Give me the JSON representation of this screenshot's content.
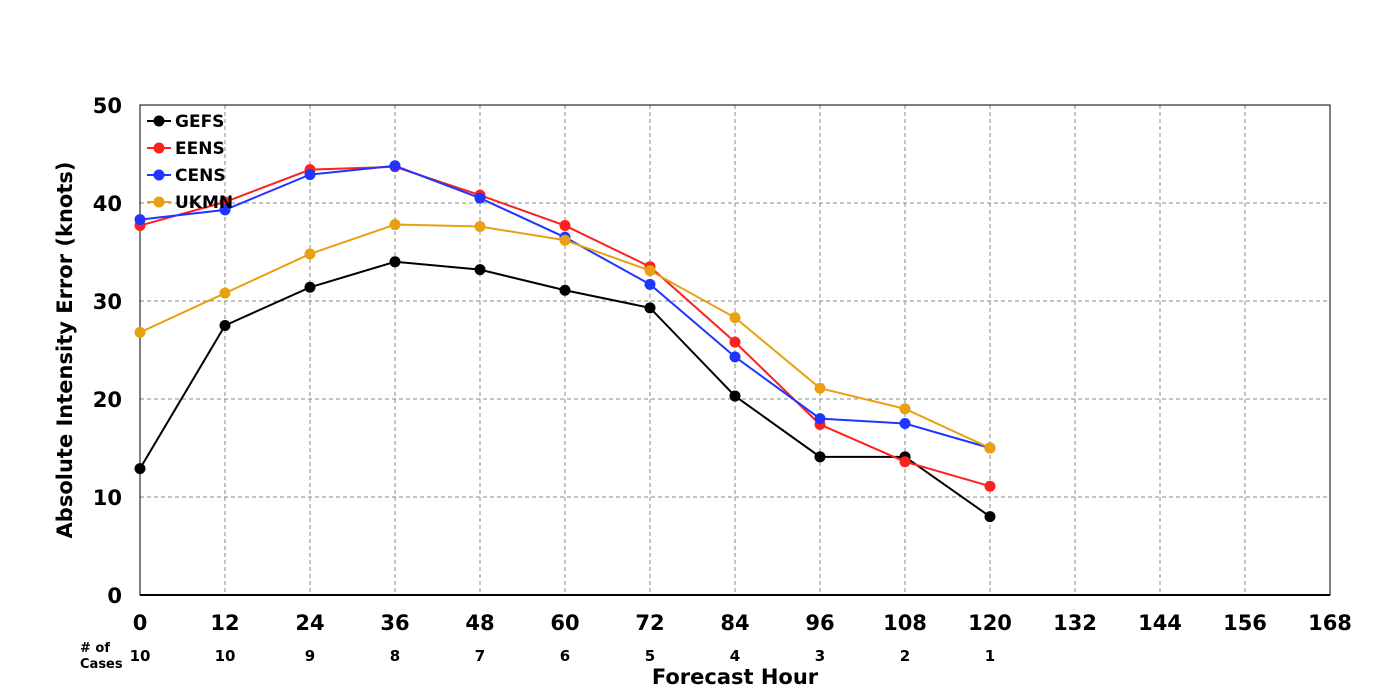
{
  "chart_data": {
    "type": "line",
    "title": "",
    "xlabel": "Forecast Hour",
    "ylabel": "Absolute Intensity Error (knots)",
    "xlim": [
      0,
      168
    ],
    "ylim": [
      0,
      50
    ],
    "xticks": [
      0,
      12,
      24,
      36,
      48,
      60,
      72,
      84,
      96,
      108,
      120,
      132,
      144,
      156,
      168
    ],
    "yticks": [
      0,
      10,
      20,
      30,
      40,
      50
    ],
    "grid": true,
    "legend_position": "top-left",
    "x": [
      0,
      12,
      24,
      36,
      48,
      60,
      72,
      84,
      96,
      108,
      120
    ],
    "series": [
      {
        "name": "GEFS",
        "color": "#000000",
        "values": [
          12.9,
          27.5,
          31.4,
          34.0,
          33.2,
          31.1,
          29.3,
          20.3,
          14.1,
          14.1,
          8.0
        ]
      },
      {
        "name": "EENS",
        "color": "#ff2020",
        "values": [
          37.7,
          40.1,
          43.4,
          43.7,
          40.8,
          37.7,
          33.5,
          25.8,
          17.4,
          13.6,
          11.1
        ]
      },
      {
        "name": "CENS",
        "color": "#2035ff",
        "values": [
          38.3,
          39.3,
          42.9,
          43.8,
          40.5,
          36.5,
          31.7,
          24.3,
          18.0,
          17.5,
          15.0
        ]
      },
      {
        "name": "UKMN",
        "color": "#e8a010",
        "values": [
          26.8,
          30.8,
          34.8,
          37.8,
          37.6,
          36.2,
          33.1,
          28.3,
          21.1,
          19.0,
          15.0
        ]
      }
    ],
    "cases_label_line1": "# of",
    "cases_label_line2": "Cases",
    "cases": [
      "10",
      "10",
      "9",
      "8",
      "7",
      "6",
      "5",
      "4",
      "3",
      "2",
      "1"
    ]
  }
}
